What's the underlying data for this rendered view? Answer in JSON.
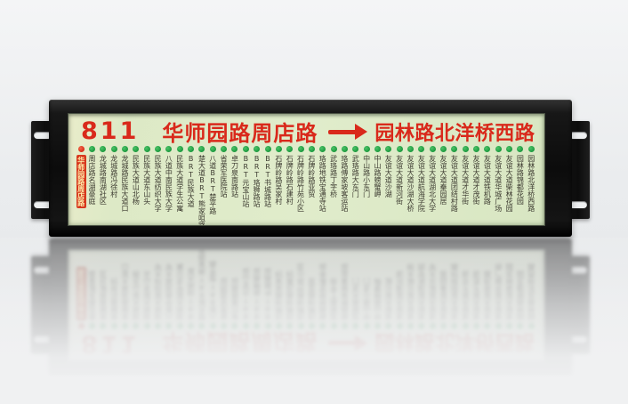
{
  "panel": {
    "route_number": "811",
    "origin": "华师园路周店路",
    "arrow_icon": "→",
    "destination": "园林路北洋桥西路"
  },
  "stations": {
    "highlight_index": 0,
    "names": [
      "华师园路周店路",
      "周店路名湖豪庭",
      "龙城路南湖社区",
      "龙城路冯徐村",
      "龙城路民族大道口",
      "民族大道山北杨",
      "民族大道东山头",
      "民族大道纺织大学",
      "八道中南民族大学",
      "民族大道学生公寓",
      "BRT民族大道",
      "楚大道BRT熊家咀路站",
      "八道BRT楚平路",
      "省荣军医院站",
      "卓刀泉南路站",
      "BRT元宝山站",
      "BRT珞狮路站",
      "BRT书城路站",
      "石牌岭路吴家村",
      "石牌岭路石建村",
      "石牌岭路竹苑小区",
      "石牌岭路亚贸",
      "珞路地铁宝通寺站",
      "武珞路丁字桥",
      "珞路傅家坡客运站",
      "武珞路大东门",
      "中山路小东门",
      "中山路螃蟹岬",
      "友谊大道沙湖",
      "友谊大道新河街",
      "友谊大道沙湖大桥",
      "友谊大道航海学院",
      "友谊大道湖北大学",
      "友谊大道秦园居",
      "友谊大道团结村路",
      "友谊大道才华街",
      "友谊大道才茂街",
      "友谊大道铁机路",
      "友谊大道华城广场",
      "友谊大道柴林花园",
      "园林路锦都花园",
      "园林路北洋桥西路"
    ]
  },
  "colors": {
    "header_text": "#d9291b",
    "dot_green": "#1c9a3e",
    "dot_red": "#d82b18",
    "station_text": "#3c3a30",
    "highlight_bg": "#d7381e",
    "highlight_text": "#ffedaa",
    "screen_bg": "#dde9c6",
    "frame_black": "#0c0c0c"
  }
}
